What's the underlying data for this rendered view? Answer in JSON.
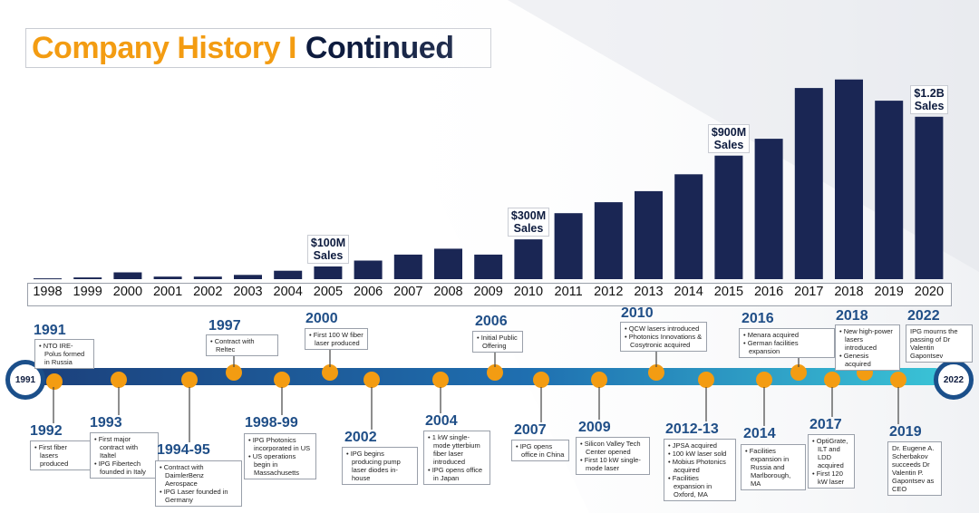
{
  "title": {
    "part1": "Company History I",
    "part2": "Continued"
  },
  "colors": {
    "accent": "#f39c12",
    "navy": "#1a2654",
    "title_dark": "#0d1b3e",
    "year_blue": "#1f4e87"
  },
  "chart_data": {
    "type": "bar",
    "categories": [
      "1998",
      "1999",
      "2000",
      "2001",
      "2002",
      "2003",
      "2004",
      "2005",
      "2006",
      "2007",
      "2008",
      "2009",
      "2010",
      "2011",
      "2012",
      "2013",
      "2014",
      "2015",
      "2016",
      "2017",
      "2018",
      "2019",
      "2020"
    ],
    "values": [
      1,
      2,
      8,
      3,
      3,
      5,
      10,
      15,
      22,
      29,
      36,
      29,
      47,
      78,
      91,
      104,
      124,
      146,
      166,
      226,
      236,
      211,
      192
    ],
    "ylim": [
      0,
      240
    ],
    "annotations": [
      {
        "label": "$100M\nSales",
        "category": "2005"
      },
      {
        "label": "$300M\nSales",
        "category": "2010"
      },
      {
        "label": "$900M\nSales",
        "category": "2015"
      },
      {
        "label": "$1.2B\nSales",
        "category": "2020"
      }
    ]
  },
  "timeline": {
    "start_label": "1991",
    "end_label": "2022",
    "events": [
      {
        "year": "1991",
        "lines": [
          "NTO IRE-Polus formed in Russia"
        ],
        "bullet": true
      },
      {
        "year": "1992",
        "lines": [
          "First fiber lasers produced"
        ],
        "bullet": true
      },
      {
        "year": "1993",
        "lines": [
          "First major contract with Italtel",
          "IPG Fibertech founded in Italy"
        ],
        "bullet": true
      },
      {
        "year": "1994-95",
        "lines": [
          "Contract with DaimlerBenz Aerospace",
          "IPG Laser founded in Germany"
        ],
        "bullet": true
      },
      {
        "year": "1997",
        "lines": [
          "Contract with Reltec"
        ],
        "bullet": true
      },
      {
        "year": "1998-99",
        "lines": [
          "IPG Photonics incorporated in US",
          "US operations begin in Massachusetts"
        ],
        "bullet": true
      },
      {
        "year": "2000",
        "lines": [
          "First 100 W fiber laser produced"
        ],
        "bullet": true
      },
      {
        "year": "2002",
        "lines": [
          "IPG begins producing pump laser diodes in-house"
        ],
        "bullet": true
      },
      {
        "year": "2004",
        "lines": [
          "1 kW single-mode ytterbium fiber laser introduced",
          "IPG opens office in Japan"
        ],
        "bullet": true
      },
      {
        "year": "2006",
        "lines": [
          "Initial Public Offering"
        ],
        "bullet": true
      },
      {
        "year": "2007",
        "lines": [
          "IPG opens office in China"
        ],
        "bullet": true
      },
      {
        "year": "2009",
        "lines": [
          "Silicon Valley Tech Center opened",
          "First 10 kW single-mode laser"
        ],
        "bullet": true
      },
      {
        "year": "2010",
        "lines": [
          "QCW lasers introduced",
          "Photonics Innovations & Cosytronic acquired"
        ],
        "bullet": true
      },
      {
        "year": "2012-13",
        "lines": [
          "JPSA acquired",
          "100 kW laser sold",
          "Mobius Photonics acquired",
          "Facilities expansion in Oxford, MA"
        ],
        "bullet": true
      },
      {
        "year": "2014",
        "lines": [
          "Facilities expansion in Russia and Marlborough, MA"
        ],
        "bullet": true
      },
      {
        "year": "2016",
        "lines": [
          "Menara acquired",
          "German facilities expansion"
        ],
        "bullet": true
      },
      {
        "year": "2017",
        "lines": [
          "OptiGrate, ILT and LDD acquired",
          "First 120 kW laser"
        ],
        "bullet": true
      },
      {
        "year": "2018",
        "lines": [
          "New high-power lasers introduced",
          "Genesis acquired"
        ],
        "bullet": true
      },
      {
        "year": "2019",
        "lines": [
          "Dr. Eugene A. Scherbakov succeeds Dr Valentin P. Gapontsev as CEO"
        ],
        "bullet": false
      },
      {
        "year": "2022",
        "lines": [
          "IPG mourns the passing of Dr Valentin Gapontsev"
        ],
        "bullet": false
      }
    ]
  }
}
